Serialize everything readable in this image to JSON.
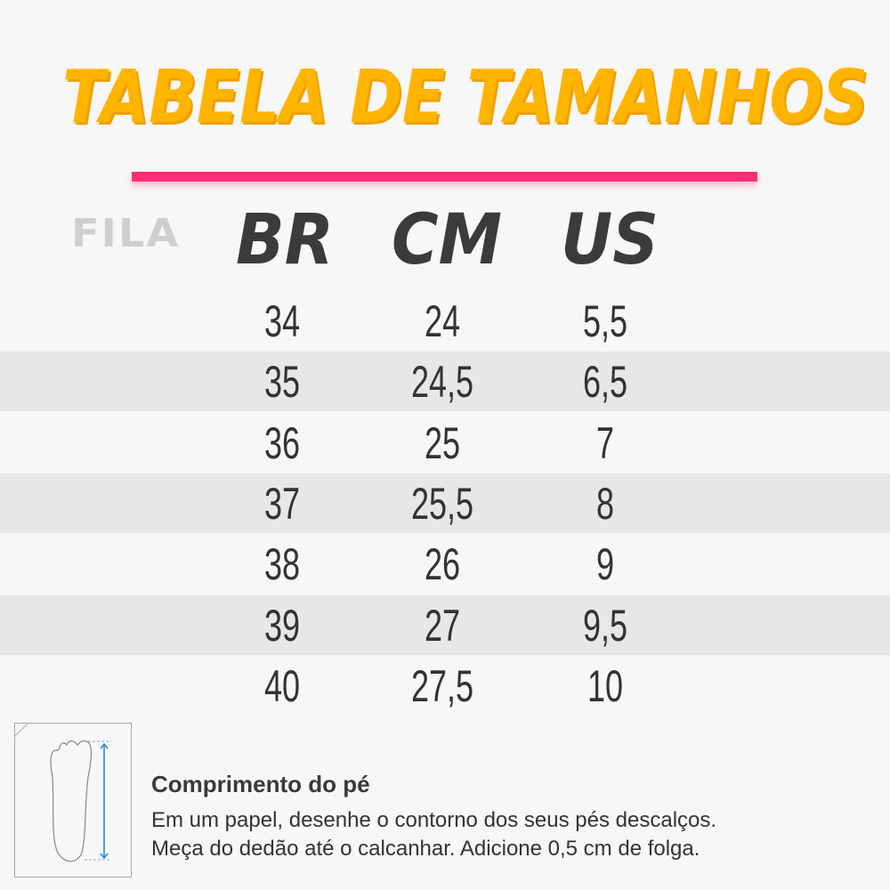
{
  "title": "TABELA DE TAMANHOS",
  "brand": "FILA",
  "accent_color": "#ffb400",
  "line_color": "#ff2e78",
  "headers": {
    "br": "BR",
    "cm": "CM",
    "us": "US"
  },
  "rows": [
    {
      "br": "34",
      "cm": "24",
      "us": "5,5"
    },
    {
      "br": "35",
      "cm": "24,5",
      "us": "6,5"
    },
    {
      "br": "36",
      "cm": "25",
      "us": "7"
    },
    {
      "br": "37",
      "cm": "25,5",
      "us": "8"
    },
    {
      "br": "38",
      "cm": "26",
      "us": "9"
    },
    {
      "br": "39",
      "cm": "27",
      "us": "9,5"
    },
    {
      "br": "40",
      "cm": "27,5",
      "us": "10"
    }
  ],
  "tip": {
    "heading": "Comprimento do pé",
    "line1": "Em um papel, desenhe o contorno dos seus pés descalços.",
    "line2": "Meça do dedão até o calcanhar. Adicione 0,5 cm de folga.",
    "icon": "foot-measure-icon"
  }
}
